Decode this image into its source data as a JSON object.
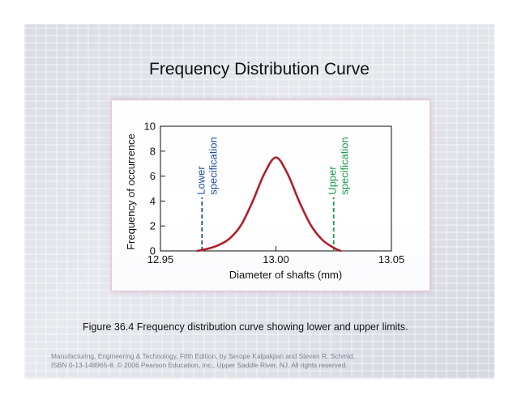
{
  "slide": {
    "title": "Frequency Distribution Curve",
    "caption": "Figure 36.4  Frequency distribution curve showing lower and upper limits.",
    "footer_line1": "Manufacturing, Engineering & Technology, Fifth Edition, by Serope Kalpakjian and Steven R. Schmid.",
    "footer_line2": "ISBN 0-13-148965-8. © 2006 Pearson Education, Inc., Upper Saddle River, NJ.  All rights reserved."
  },
  "chart_data": {
    "type": "line",
    "title": "",
    "xlabel": "Diameter of shafts (mm)",
    "ylabel": "Frequency of occurrence",
    "xlim": [
      12.95,
      13.05
    ],
    "ylim": [
      0,
      10
    ],
    "x_ticks": [
      12.95,
      13.0,
      13.05
    ],
    "x_tick_labels": [
      "12.95",
      "13.00",
      "13.05"
    ],
    "y_ticks": [
      0,
      2,
      4,
      6,
      8,
      10
    ],
    "y_tick_labels": [
      "0",
      "2",
      "4",
      "6",
      "8",
      "10"
    ],
    "grid": false,
    "series": [
      {
        "color": "#b0202a",
        "x": [
          12.966,
          12.97,
          12.975,
          12.98,
          12.985,
          12.99,
          12.995,
          13.0,
          13.005,
          13.01,
          13.015,
          13.02,
          13.025,
          13.028
        ],
        "values": [
          0.0,
          0.15,
          0.45,
          1.0,
          2.1,
          4.0,
          6.2,
          7.5,
          6.2,
          4.0,
          2.1,
          0.9,
          0.25,
          0.0
        ]
      }
    ],
    "spec_limits": [
      {
        "name": "lower",
        "label_lines": [
          "Lower",
          "specification"
        ],
        "x": 12.968,
        "color": "#1f4e9e"
      },
      {
        "name": "upper",
        "label_lines": [
          "Upper",
          "specification"
        ],
        "x": 13.025,
        "color": "#1a9a4a"
      }
    ]
  },
  "colors": {
    "curve": "#b0202a",
    "lower_spec": "#1f4e9e",
    "upper_spec": "#1a9a4a",
    "panel_glow": "#e6c9d8"
  }
}
